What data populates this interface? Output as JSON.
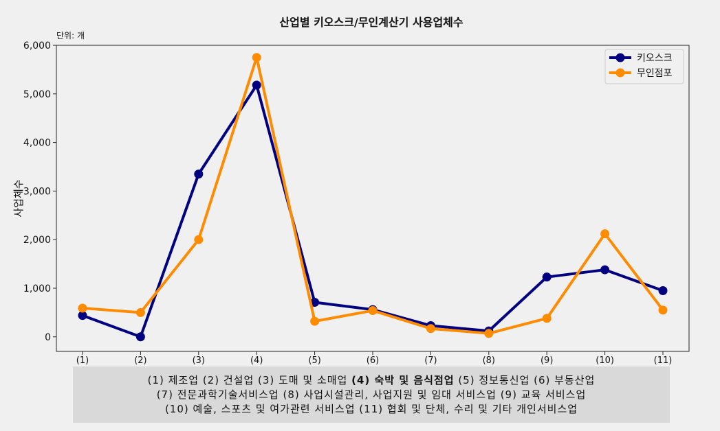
{
  "chart_data": {
    "type": "line",
    "title": "산업별 키오스크/무인계산기 사용업체수",
    "subtitle": "단위: 개",
    "xlabel": "",
    "ylabel": "사업체수",
    "categories": [
      "(1)",
      "(2)",
      "(3)",
      "(4)",
      "(5)",
      "(6)",
      "(7)",
      "(8)",
      "(9)",
      "(10)",
      "(11)"
    ],
    "ylim": [
      -300,
      6000
    ],
    "yticks": [
      0,
      1000,
      2000,
      3000,
      4000,
      5000,
      6000
    ],
    "ytick_labels": [
      "0",
      "1,000",
      "2,000",
      "3,000",
      "4,000",
      "5,000",
      "6,000"
    ],
    "grid": false,
    "legend_position": "top-right",
    "series": [
      {
        "name": "키오스크",
        "color": "#000080",
        "values": [
          440,
          0,
          3350,
          5180,
          710,
          560,
          230,
          120,
          1230,
          1380,
          950
        ]
      },
      {
        "name": "무인점포",
        "color": "#ff8c00",
        "values": [
          590,
          500,
          2000,
          5750,
          320,
          540,
          170,
          70,
          380,
          2120,
          550
        ]
      }
    ]
  },
  "notes": {
    "line1_pre": "(1) 제조업 (2) 건설업 (3) 도매 및 소매업 ",
    "line1_bold": "(4) 숙박 및 음식점업",
    "line1_post": " (5) 정보통신업 (6) 부동산업",
    "line2": "(7) 전문과학기술서비스업 (8) 사업시설관리, 사업지원 및 임대 서비스업 (9) 교육 서비스업",
    "line3": "(10) 예술, 스포츠 및 여가관련 서비스업 (11) 협회 및 단체, 수리 및 기타 개인서비스업"
  }
}
